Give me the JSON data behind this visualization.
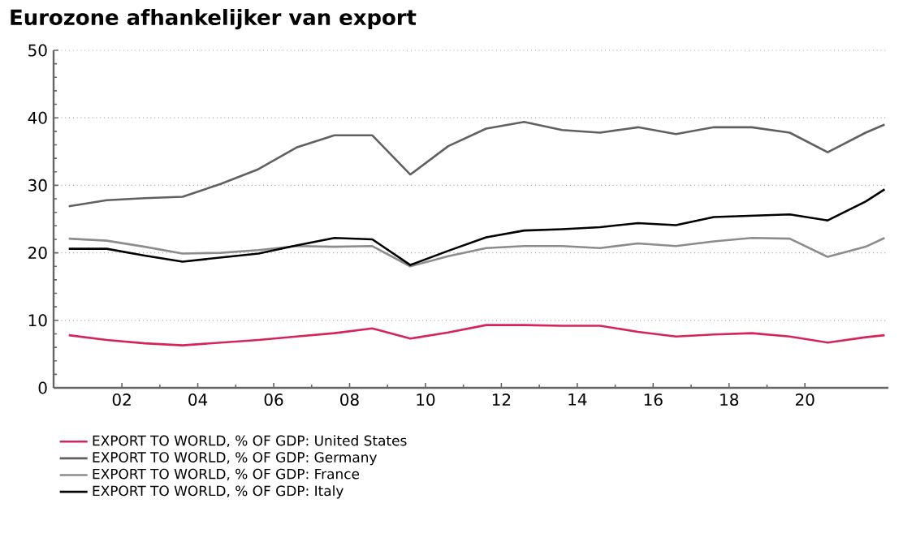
{
  "chart_data": {
    "type": "line",
    "title": "Eurozone afhankelijker van export",
    "x": [
      2000.6,
      2001.6,
      2002.6,
      2003.6,
      2004.6,
      2005.6,
      2006.6,
      2007.6,
      2008.6,
      2009.6,
      2010.6,
      2011.6,
      2012.6,
      2013.6,
      2014.6,
      2015.6,
      2016.6,
      2017.6,
      2018.6,
      2019.6,
      2020.6,
      2021.6,
      2022.1
    ],
    "series": [
      {
        "name": "EXPORT TO WORLD, % OF GDP: United States",
        "color": "#d6245a",
        "values": [
          7.8,
          7.1,
          6.6,
          6.3,
          6.7,
          7.1,
          7.6,
          8.1,
          8.8,
          7.3,
          8.2,
          9.3,
          9.3,
          9.2,
          9.2,
          8.3,
          7.6,
          7.9,
          8.1,
          7.6,
          6.7,
          7.5,
          7.8
        ]
      },
      {
        "name": "EXPORT TO WORLD, % OF GDP: Germany",
        "color": "#606060",
        "values": [
          26.9,
          27.8,
          28.1,
          28.3,
          30.2,
          32.4,
          35.6,
          37.4,
          37.4,
          31.6,
          35.8,
          38.4,
          39.4,
          38.2,
          37.8,
          38.6,
          37.6,
          38.6,
          38.6,
          37.8,
          34.9,
          37.8,
          39.0
        ]
      },
      {
        "name": "EXPORT TO WORLD, % OF GDP: France",
        "color": "#8c8c8c",
        "values": [
          22.1,
          21.8,
          20.9,
          19.9,
          20.0,
          20.4,
          21.0,
          20.9,
          21.0,
          18.0,
          19.5,
          20.7,
          21.0,
          21.0,
          20.7,
          21.4,
          21.0,
          21.7,
          22.2,
          22.1,
          19.4,
          20.9,
          22.2
        ]
      },
      {
        "name": "EXPORT TO WORLD, % OF GDP: Italy",
        "color": "#000000",
        "values": [
          20.6,
          20.6,
          19.6,
          18.7,
          19.3,
          19.9,
          21.1,
          22.2,
          22.0,
          18.2,
          20.3,
          22.3,
          23.3,
          23.5,
          23.8,
          24.4,
          24.1,
          25.3,
          25.5,
          25.7,
          24.8,
          27.6,
          29.4
        ]
      }
    ],
    "xlim": [
      2000.2,
      2022.2
    ],
    "xticks": [
      {
        "value": 2002,
        "label": "02"
      },
      {
        "value": 2004,
        "label": "04"
      },
      {
        "value": 2006,
        "label": "06"
      },
      {
        "value": 2008,
        "label": "08"
      },
      {
        "value": 2010,
        "label": "10"
      },
      {
        "value": 2012,
        "label": "12"
      },
      {
        "value": 2014,
        "label": "14"
      },
      {
        "value": 2016,
        "label": "16"
      },
      {
        "value": 2018,
        "label": "18"
      },
      {
        "value": 2020,
        "label": "20"
      }
    ],
    "ylim": [
      0,
      50
    ],
    "yticks": [
      0,
      10,
      20,
      30,
      40,
      50
    ],
    "grid": "y",
    "legend": "bottom",
    "marker": "none",
    "line_style": "solid"
  }
}
